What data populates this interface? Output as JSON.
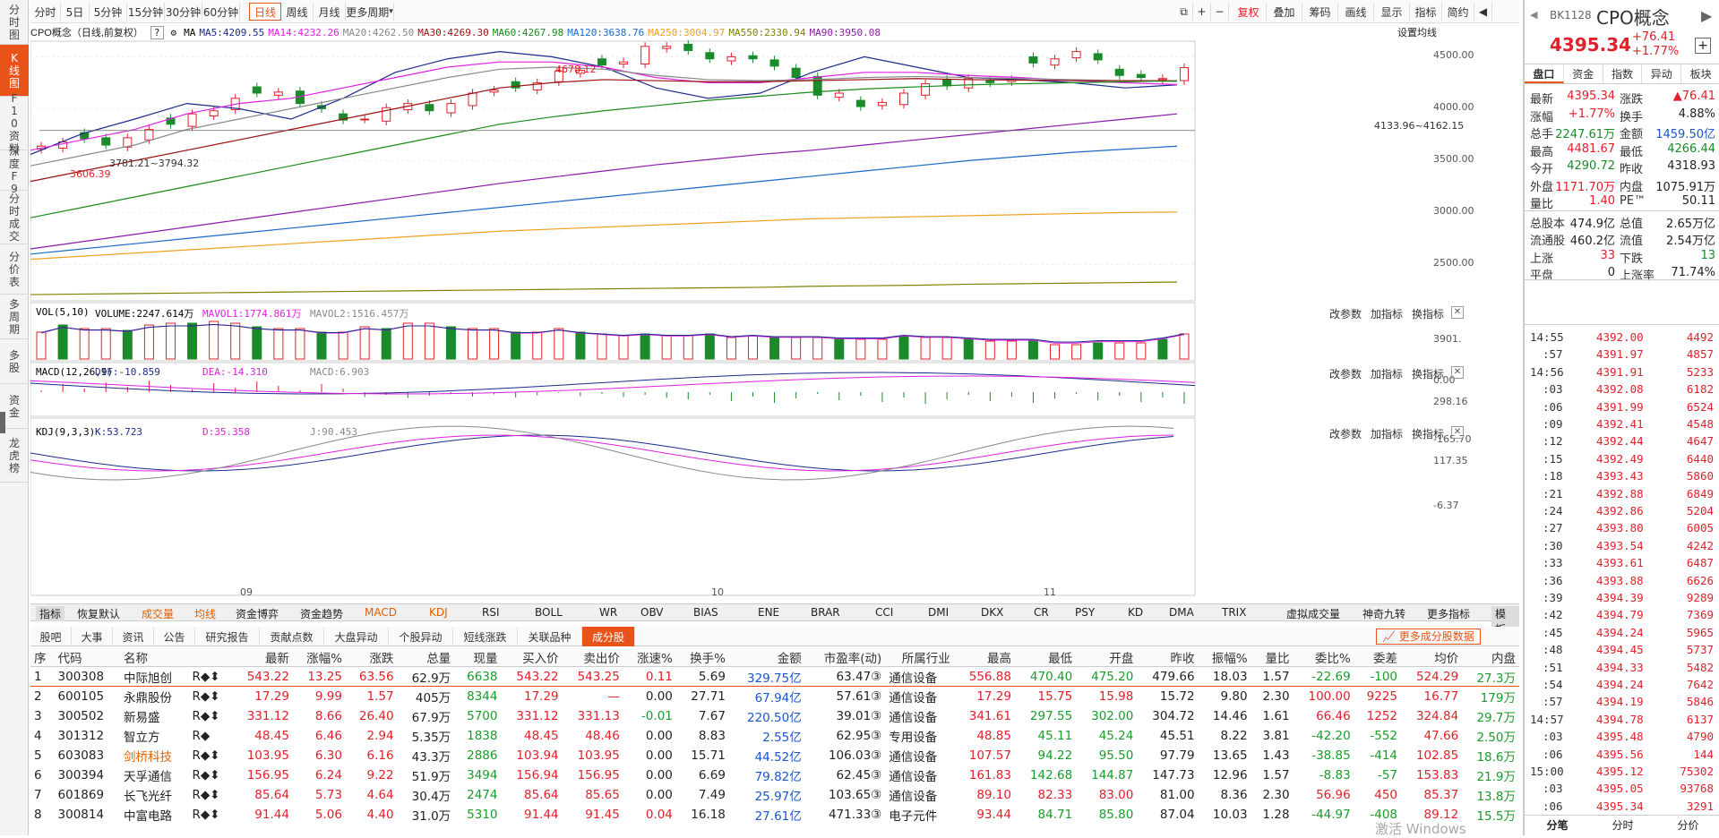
{
  "left_sidebar": [
    "分时图",
    "K线图",
    "F10资料",
    "深度F9",
    "分时成交",
    "分价表",
    "多周期",
    "多股",
    "资金",
    "龙虎榜"
  ],
  "top_buttons": [
    "分时",
    "5日",
    "5分钟",
    "15分钟",
    "30分钟",
    "60分钟",
    "日线",
    "周线",
    "月线",
    "更多周期"
  ],
  "active_period": "日线",
  "right_tools": [
    "复权",
    "叠加",
    "筹码",
    "画线",
    "显示",
    "指标",
    "简约"
  ],
  "chart_title": "CPO概念（日线,前复权）",
  "settings_link": "设置均线",
  "ma_labels": [
    {
      "text": "MA",
      "color": "#000"
    },
    {
      "text": "MA5:4209.55",
      "color": "#1b2a8c"
    },
    {
      "text": "MA14:4232.26",
      "color": "#e020e0"
    },
    {
      "text": "MA20:4262.50",
      "color": "#888888"
    },
    {
      "text": "MA30:4269.30",
      "color": "#9a1010"
    },
    {
      "text": "MA60:4267.98",
      "color": "#1a8a1a"
    },
    {
      "text": "MA120:3638.76",
      "color": "#1a6ac8"
    },
    {
      "text": "MA250:3004.97",
      "color": "#f0a020"
    },
    {
      "text": "MA550:2330.94",
      "color": "#808000"
    },
    {
      "text": "MA90:3950.08",
      "color": "#8a1aaa"
    }
  ],
  "price_axis": [
    "4500.00",
    "4000.00",
    "3500.00",
    "3000.00",
    "2500.00"
  ],
  "annotations": {
    "high": "4678.12",
    "low": "3606.39",
    "range": "3781.21~3794.32",
    "right": "4133.96~4162.15"
  },
  "vol_title": [
    "VOL(5,10)",
    "VOLUME:2247.614万",
    "MAVOL1:1774.861万",
    "MAVOL2:1516.457万"
  ],
  "vol_axis": [
    "3901.",
    "0.00"
  ],
  "macd_title": [
    "MACD(12,26,9)",
    "DIF:-10.859",
    "DEA:-14.310",
    "MACD:6.903"
  ],
  "macd_axis": [
    "298.16",
    "-165.70"
  ],
  "kdj_title": [
    "KDJ(9,3,3)",
    "K:53.723",
    "D:35.358",
    "J:90.453"
  ],
  "kdj_axis": [
    "117.35",
    "-6.37"
  ],
  "panel_buttons": [
    "改参数",
    "加指标",
    "换指标"
  ],
  "date_labels": [
    "09",
    "10",
    "11"
  ],
  "indicator_bar": [
    "指标",
    "恢复默认",
    "成交量",
    "均线",
    "资金博弈",
    "资金趋势",
    "MACD",
    "KDJ",
    "RSI",
    "BOLL",
    "WR",
    "OBV",
    "BIAS",
    "ENE",
    "BRAR",
    "CCI",
    "DMI",
    "DKX",
    "CR",
    "PSY",
    "KD",
    "DMA",
    "TRIX",
    "虚拟成交量",
    "神奇九转",
    "更多指标",
    "模板"
  ],
  "bottom_tabs": [
    "股吧",
    "大事",
    "资讯",
    "公告",
    "研究报告",
    "贡献点数",
    "大盘异动",
    "个股异动",
    "短线涨跌",
    "关联品种",
    "成分股"
  ],
  "more_data_btn": "更多成分股数据",
  "table_headers": [
    "序",
    "代码",
    "名称",
    "",
    "最新",
    "涨幅%",
    "涨跌",
    "总量",
    "现量",
    "买入价",
    "卖出价",
    "涨速%",
    "换手%",
    "金额",
    "市盈率(动)",
    "所属行业",
    "最高",
    "最低",
    "开盘",
    "昨收",
    "振幅%",
    "量比",
    "委比%",
    "委差",
    "均价",
    "内盘"
  ],
  "table_rows": [
    [
      "1",
      "300308",
      "中际旭创",
      "R◆⬍",
      "543.22",
      "13.25",
      "63.56",
      "62.9万",
      "6638",
      "543.22",
      "543.25",
      "0.11",
      "5.69",
      "329.75亿",
      "63.47③",
      "通信设备",
      "556.88",
      "470.40",
      "475.20",
      "479.66",
      "18.03",
      "1.57",
      "-22.69",
      "-100",
      "524.29",
      "27.3万"
    ],
    [
      "2",
      "600105",
      "永鼎股份",
      "R◆⬍",
      "17.29",
      "9.99",
      "1.57",
      "405万",
      "8344",
      "17.29",
      "—",
      "0.00",
      "27.71",
      "67.94亿",
      "57.61③",
      "通信设备",
      "17.29",
      "15.75",
      "15.98",
      "15.72",
      "9.80",
      "2.30",
      "100.00",
      "9225",
      "16.77",
      "179万"
    ],
    [
      "3",
      "300502",
      "新易盛",
      "R◆⬍",
      "331.12",
      "8.66",
      "26.40",
      "67.9万",
      "5700",
      "331.12",
      "331.13",
      "-0.01",
      "7.67",
      "220.50亿",
      "39.01③",
      "通信设备",
      "341.61",
      "297.55",
      "302.00",
      "304.72",
      "14.46",
      "1.61",
      "66.46",
      "1252",
      "324.84",
      "29.7万"
    ],
    [
      "4",
      "301312",
      "智立方",
      "R◆",
      "48.45",
      "6.46",
      "2.94",
      "5.35万",
      "1838",
      "48.45",
      "48.46",
      "0.00",
      "8.83",
      "2.55亿",
      "62.95③",
      "专用设备",
      "48.85",
      "45.11",
      "45.24",
      "45.51",
      "8.22",
      "3.81",
      "-42.20",
      "-552",
      "47.66",
      "2.50万"
    ],
    [
      "5",
      "603083",
      "剑桥科技",
      "R◆⬍",
      "103.95",
      "6.30",
      "6.16",
      "43.3万",
      "2886",
      "103.94",
      "103.95",
      "0.00",
      "15.71",
      "44.52亿",
      "106.03③",
      "通信设备",
      "107.57",
      "94.22",
      "95.50",
      "97.79",
      "13.65",
      "1.43",
      "-38.85",
      "-414",
      "102.85",
      "18.6万"
    ],
    [
      "6",
      "300394",
      "天孚通信",
      "R◆⬍",
      "156.95",
      "6.24",
      "9.22",
      "51.9万",
      "3494",
      "156.94",
      "156.95",
      "0.00",
      "6.69",
      "79.82亿",
      "62.45③",
      "通信设备",
      "161.83",
      "142.68",
      "144.87",
      "147.73",
      "12.96",
      "1.57",
      "-8.83",
      "-57",
      "153.83",
      "21.9万"
    ],
    [
      "7",
      "601869",
      "长飞光纤",
      "R◆⬍",
      "85.64",
      "5.73",
      "4.64",
      "30.4万",
      "2474",
      "85.64",
      "85.65",
      "0.00",
      "7.49",
      "25.97亿",
      "103.65③",
      "通信设备",
      "89.10",
      "82.33",
      "83.00",
      "81.00",
      "8.36",
      "2.30",
      "56.96",
      "450",
      "85.37",
      "13.8万"
    ],
    [
      "8",
      "300814",
      "中富电路",
      "R◆⬍",
      "91.44",
      "5.06",
      "4.40",
      "31.0万",
      "5310",
      "91.44",
      "91.45",
      "0.04",
      "16.18",
      "27.61亿",
      "471.33③",
      "电子元件",
      "93.44",
      "84.71",
      "85.80",
      "87.04",
      "10.03",
      "1.28",
      "-44.97",
      "-408",
      "89.12",
      "15.5万"
    ]
  ],
  "quote": {
    "code": "BK1128",
    "name": "CPO概念",
    "price": "4395.34",
    "change": "+76.41",
    "pct": "+1.77%",
    "tabs": [
      "盘口",
      "资金",
      "指数",
      "异动",
      "板块"
    ],
    "rows": [
      [
        "最新",
        "4395.34",
        "涨跌",
        "▲76.41"
      ],
      [
        "涨幅",
        "+1.77%",
        "换手",
        "4.88%"
      ],
      [
        "总手",
        "2247.61万",
        "金额",
        "1459.50亿"
      ],
      [
        "最高",
        "4481.67",
        "最低",
        "4266.44"
      ],
      [
        "今开",
        "4290.72",
        "昨收",
        "4318.93"
      ],
      [
        "外盘",
        "1171.70万",
        "内盘",
        "1075.91万"
      ],
      [
        "量比",
        "1.40",
        "PE™",
        "50.11"
      ],
      [
        "总股本",
        "474.9亿",
        "总值",
        "2.65万亿"
      ],
      [
        "流通股",
        "460.2亿",
        "流值",
        "2.54万亿"
      ],
      [
        "上涨",
        "33",
        "下跌",
        "13"
      ],
      [
        "平盘",
        "0",
        "上涨率",
        "71.74%"
      ]
    ]
  },
  "ticks": [
    [
      "14:55",
      "4392.00",
      "4492"
    ],
    [
      ":57",
      "4391.97",
      "4857"
    ],
    [
      "14:56",
      "4391.91",
      "5233"
    ],
    [
      ":03",
      "4392.08",
      "6182"
    ],
    [
      ":06",
      "4391.99",
      "6524"
    ],
    [
      ":09",
      "4392.41",
      "4548"
    ],
    [
      ":12",
      "4392.44",
      "4647"
    ],
    [
      ":15",
      "4392.49",
      "6440"
    ],
    [
      ":18",
      "4393.43",
      "5860"
    ],
    [
      ":21",
      "4392.88",
      "6849"
    ],
    [
      ":24",
      "4392.86",
      "5204"
    ],
    [
      ":27",
      "4393.80",
      "6005"
    ],
    [
      ":30",
      "4393.54",
      "4242"
    ],
    [
      ":33",
      "4393.61",
      "6487"
    ],
    [
      ":36",
      "4393.88",
      "6626"
    ],
    [
      ":39",
      "4394.39",
      "9289"
    ],
    [
      ":42",
      "4394.79",
      "7369"
    ],
    [
      ":45",
      "4394.24",
      "5965"
    ],
    [
      ":48",
      "4394.45",
      "5737"
    ],
    [
      ":51",
      "4394.33",
      "5482"
    ],
    [
      ":54",
      "4394.24",
      "7642"
    ],
    [
      ":57",
      "4394.19",
      "5846"
    ],
    [
      "14:57",
      "4394.78",
      "6137"
    ],
    [
      ":03",
      "4395.48",
      "4790"
    ],
    [
      ":06",
      "4395.56",
      "144"
    ],
    [
      "15:00",
      "4395.12",
      "75302"
    ],
    [
      ":03",
      "4395.05",
      "93768"
    ],
    [
      ":06",
      "4395.34",
      "3291"
    ]
  ],
  "bottom_rp_tabs": [
    "分笔",
    "分时",
    "分价"
  ],
  "watermark": "激活 Windows"
}
